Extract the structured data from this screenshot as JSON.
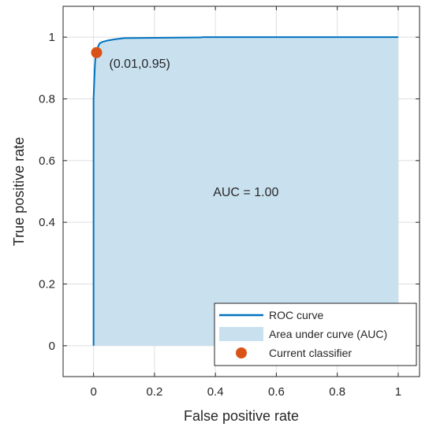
{
  "chart_data": {
    "type": "line",
    "xlabel": "False positive rate",
    "ylabel": "True positive rate",
    "xlim": [
      -0.1,
      1.07
    ],
    "ylim": [
      -0.1,
      1.1
    ],
    "grid": true,
    "legend_position": "bottom-right",
    "x_ticks": [
      {
        "value": 0,
        "label": "0"
      },
      {
        "value": 0.2,
        "label": "0.2"
      },
      {
        "value": 0.4,
        "label": "0.4"
      },
      {
        "value": 0.6,
        "label": "0.6"
      },
      {
        "value": 0.8,
        "label": "0.8"
      },
      {
        "value": 1,
        "label": "1"
      }
    ],
    "y_ticks": [
      {
        "value": 0,
        "label": "0"
      },
      {
        "value": 0.2,
        "label": "0.2"
      },
      {
        "value": 0.4,
        "label": "0.4"
      },
      {
        "value": 0.6,
        "label": "0.6"
      },
      {
        "value": 0.8,
        "label": "0.8"
      },
      {
        "value": 1,
        "label": "1"
      }
    ],
    "series": [
      {
        "name": "ROC curve",
        "color": "#0072BD",
        "x": [
          0,
          0,
          0.002,
          0.004,
          0.006,
          0.01,
          0.015,
          0.02,
          0.03,
          0.05,
          0.07,
          0.1,
          0.2,
          0.35,
          0.36,
          0.5,
          0.7,
          1.0
        ],
        "y": [
          0,
          0.8,
          0.85,
          0.9,
          0.93,
          0.95,
          0.97,
          0.98,
          0.985,
          0.99,
          0.993,
          0.997,
          0.998,
          0.999,
          1.0,
          1.0,
          1.0,
          1.0
        ]
      }
    ],
    "area": {
      "name": "Area under curve (AUC)",
      "color": "#C9E1EF"
    },
    "points": [
      {
        "name": "Current classifier",
        "x": 0.01,
        "y": 0.95,
        "color": "#D95319",
        "label": "(0.01,0.95)"
      }
    ],
    "annotations": [
      {
        "text": "AUC = 1.00",
        "x": 0.5,
        "y": 0.5
      }
    ],
    "legend": [
      {
        "label": "ROC curve",
        "kind": "line",
        "color": "#0072BD"
      },
      {
        "label": "Area under curve (AUC)",
        "kind": "patch",
        "color": "#C9E1EF"
      },
      {
        "label": "Current classifier",
        "kind": "marker",
        "color": "#D95319"
      }
    ],
    "colors": {
      "axis": "#262626",
      "grid": "#DFDFDF"
    }
  }
}
